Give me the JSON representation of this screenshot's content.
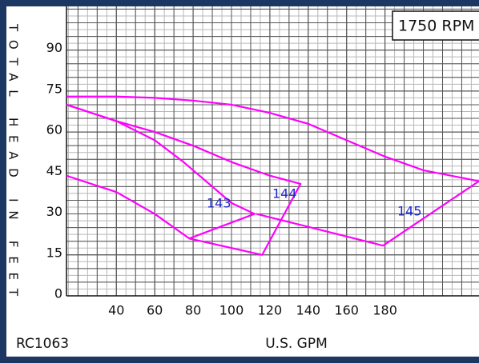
{
  "chart_data": {
    "type": "line",
    "title": "1750 RPM",
    "ylabel": "TOTAL HEAD IN FEET",
    "xlabel": "U.S. GPM",
    "model": "RC1063",
    "xlim": [
      14,
      229
    ],
    "ylim": [
      0,
      106
    ],
    "xticks": [
      40,
      60,
      80,
      100,
      120,
      140,
      160,
      180
    ],
    "yticks": [
      0,
      15,
      30,
      45,
      60,
      75,
      90
    ],
    "grid": true,
    "color": "#ff00ff",
    "series": [
      {
        "name": "143",
        "x": [
          14,
          40,
          60,
          75,
          90,
          100,
          112,
          78,
          60,
          40,
          14
        ],
        "values": [
          70,
          64,
          57,
          49,
          40,
          34,
          30,
          21,
          30,
          38,
          44
        ]
      },
      {
        "name": "144",
        "x": [
          14,
          40,
          60,
          80,
          100,
          120,
          136,
          116,
          78
        ],
        "values": [
          70,
          64,
          60,
          55,
          49,
          44,
          41,
          15,
          21
        ]
      },
      {
        "name": "145",
        "x": [
          14,
          40,
          60,
          80,
          100,
          120,
          140,
          160,
          180,
          200,
          229,
          179,
          113
        ],
        "values": [
          73,
          73,
          72.5,
          71.5,
          70,
          67,
          63,
          57,
          51,
          46,
          42,
          18.4,
          30
        ]
      }
    ]
  }
}
